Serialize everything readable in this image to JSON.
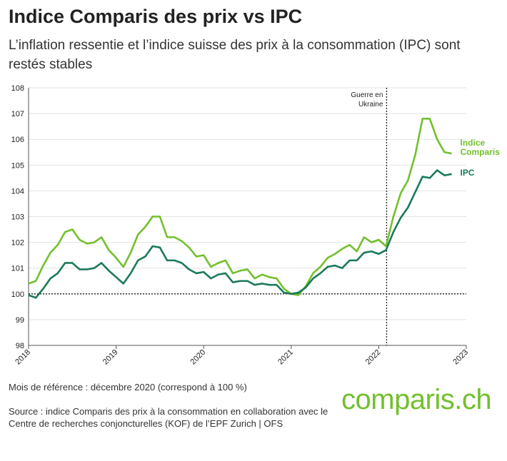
{
  "chart_data": {
    "type": "line",
    "title": "Indice Comparis des prix vs IPC",
    "subtitle": "L’inflation ressentie et l’indice suisse des prix à la consommation (IPC) sont restés stables",
    "footnote": "Mois de référence : décembre 2020 (correspond à 100 %)",
    "source": "Source : indice Comparis des prix à la consommation en collaboration avec le Centre de recherches conjoncturelles (KOF) de l’EPF Zurich | OFS",
    "brand": "comparis.ch",
    "x": [
      2018,
      2018.083,
      2018.167,
      2018.25,
      2018.333,
      2018.417,
      2018.5,
      2018.583,
      2018.667,
      2018.75,
      2018.833,
      2018.917,
      2019,
      2019.083,
      2019.167,
      2019.25,
      2019.333,
      2019.417,
      2019.5,
      2019.583,
      2019.667,
      2019.75,
      2019.833,
      2019.917,
      2020,
      2020.083,
      2020.167,
      2020.25,
      2020.333,
      2020.417,
      2020.5,
      2020.583,
      2020.667,
      2020.75,
      2020.833,
      2020.917,
      2021,
      2021.083,
      2021.167,
      2021.25,
      2021.333,
      2021.417,
      2021.5,
      2021.583,
      2021.667,
      2021.75,
      2021.833,
      2021.917,
      2022,
      2022.083,
      2022.167,
      2022.25,
      2022.333,
      2022.417,
      2022.5,
      2022.583,
      2022.667,
      2022.75,
      2022.833
    ],
    "series": [
      {
        "name": "Indice Comparis",
        "color": "#72c02c",
        "values": [
          100.4,
          100.5,
          101.1,
          101.6,
          101.9,
          102.4,
          102.5,
          102.1,
          101.95,
          102.0,
          102.2,
          101.7,
          101.4,
          101.05,
          101.6,
          102.3,
          102.6,
          103.0,
          103.0,
          102.2,
          102.2,
          102.05,
          101.8,
          101.45,
          101.5,
          101.05,
          101.2,
          101.3,
          100.8,
          100.9,
          100.95,
          100.6,
          100.75,
          100.65,
          100.6,
          100.2,
          100.0,
          99.95,
          100.3,
          100.8,
          101.05,
          101.4,
          101.55,
          101.75,
          101.9,
          101.65,
          102.2,
          102.0,
          102.1,
          101.85,
          103.0,
          103.9,
          104.4,
          105.4,
          106.8,
          106.8,
          106.0,
          105.5,
          105.45
        ]
      },
      {
        "name": "IPC",
        "color": "#1a7a5a",
        "values": [
          99.95,
          99.85,
          100.2,
          100.6,
          100.8,
          101.2,
          101.2,
          100.95,
          100.95,
          101.0,
          101.2,
          100.9,
          100.65,
          100.4,
          100.8,
          101.3,
          101.45,
          101.85,
          101.8,
          101.3,
          101.3,
          101.2,
          100.95,
          100.8,
          100.85,
          100.6,
          100.75,
          100.8,
          100.45,
          100.5,
          100.5,
          100.35,
          100.4,
          100.35,
          100.35,
          100.05,
          100.0,
          100.05,
          100.25,
          100.6,
          100.8,
          101.05,
          101.1,
          101.0,
          101.3,
          101.3,
          101.6,
          101.65,
          101.55,
          101.7,
          102.4,
          102.95,
          103.35,
          103.95,
          104.55,
          104.5,
          104.8,
          104.6,
          104.65
        ]
      }
    ],
    "xlim": [
      2018,
      2023
    ],
    "xticks": [
      2018,
      2019,
      2020,
      2021,
      2022,
      2023
    ],
    "ylim": [
      98,
      108
    ],
    "yticks": [
      98,
      99,
      100,
      101,
      102,
      103,
      104,
      105,
      106,
      107,
      108
    ],
    "grid": true,
    "reference_line": 100,
    "annotation": {
      "lines": [
        "Guerre en",
        "Ukraine"
      ],
      "x": 2022.09
    }
  }
}
